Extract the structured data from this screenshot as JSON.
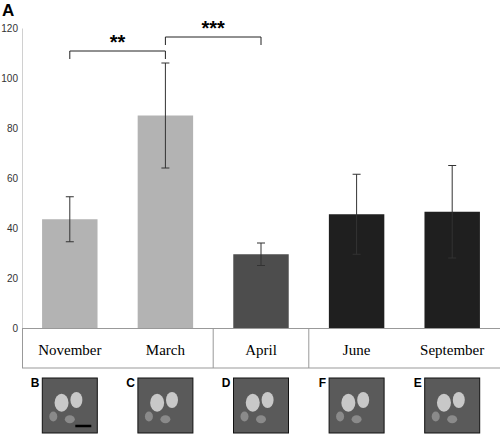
{
  "chart_data": {
    "type": "bar",
    "panel_label": "A",
    "categories": [
      "November",
      "March",
      "April",
      "June",
      "September"
    ],
    "values": [
      43.5,
      85,
      29.5,
      45.5,
      46.5
    ],
    "errors": [
      9,
      21,
      4.5,
      16,
      18.5
    ],
    "colors": [
      "#b3b3b3",
      "#b3b3b3",
      "#4d4d4d",
      "#1f1f1f",
      "#1f1f1f"
    ],
    "ylim": [
      0,
      120
    ],
    "yticks": [
      0,
      20,
      40,
      60,
      80,
      100,
      120
    ],
    "grid": false,
    "annotations": [
      {
        "text": "**",
        "from": "November",
        "to": "March"
      },
      {
        "text": "***",
        "from": "March",
        "to": "April"
      }
    ],
    "panel_labels": [
      "B",
      "C",
      "D",
      "F",
      "E"
    ]
  }
}
